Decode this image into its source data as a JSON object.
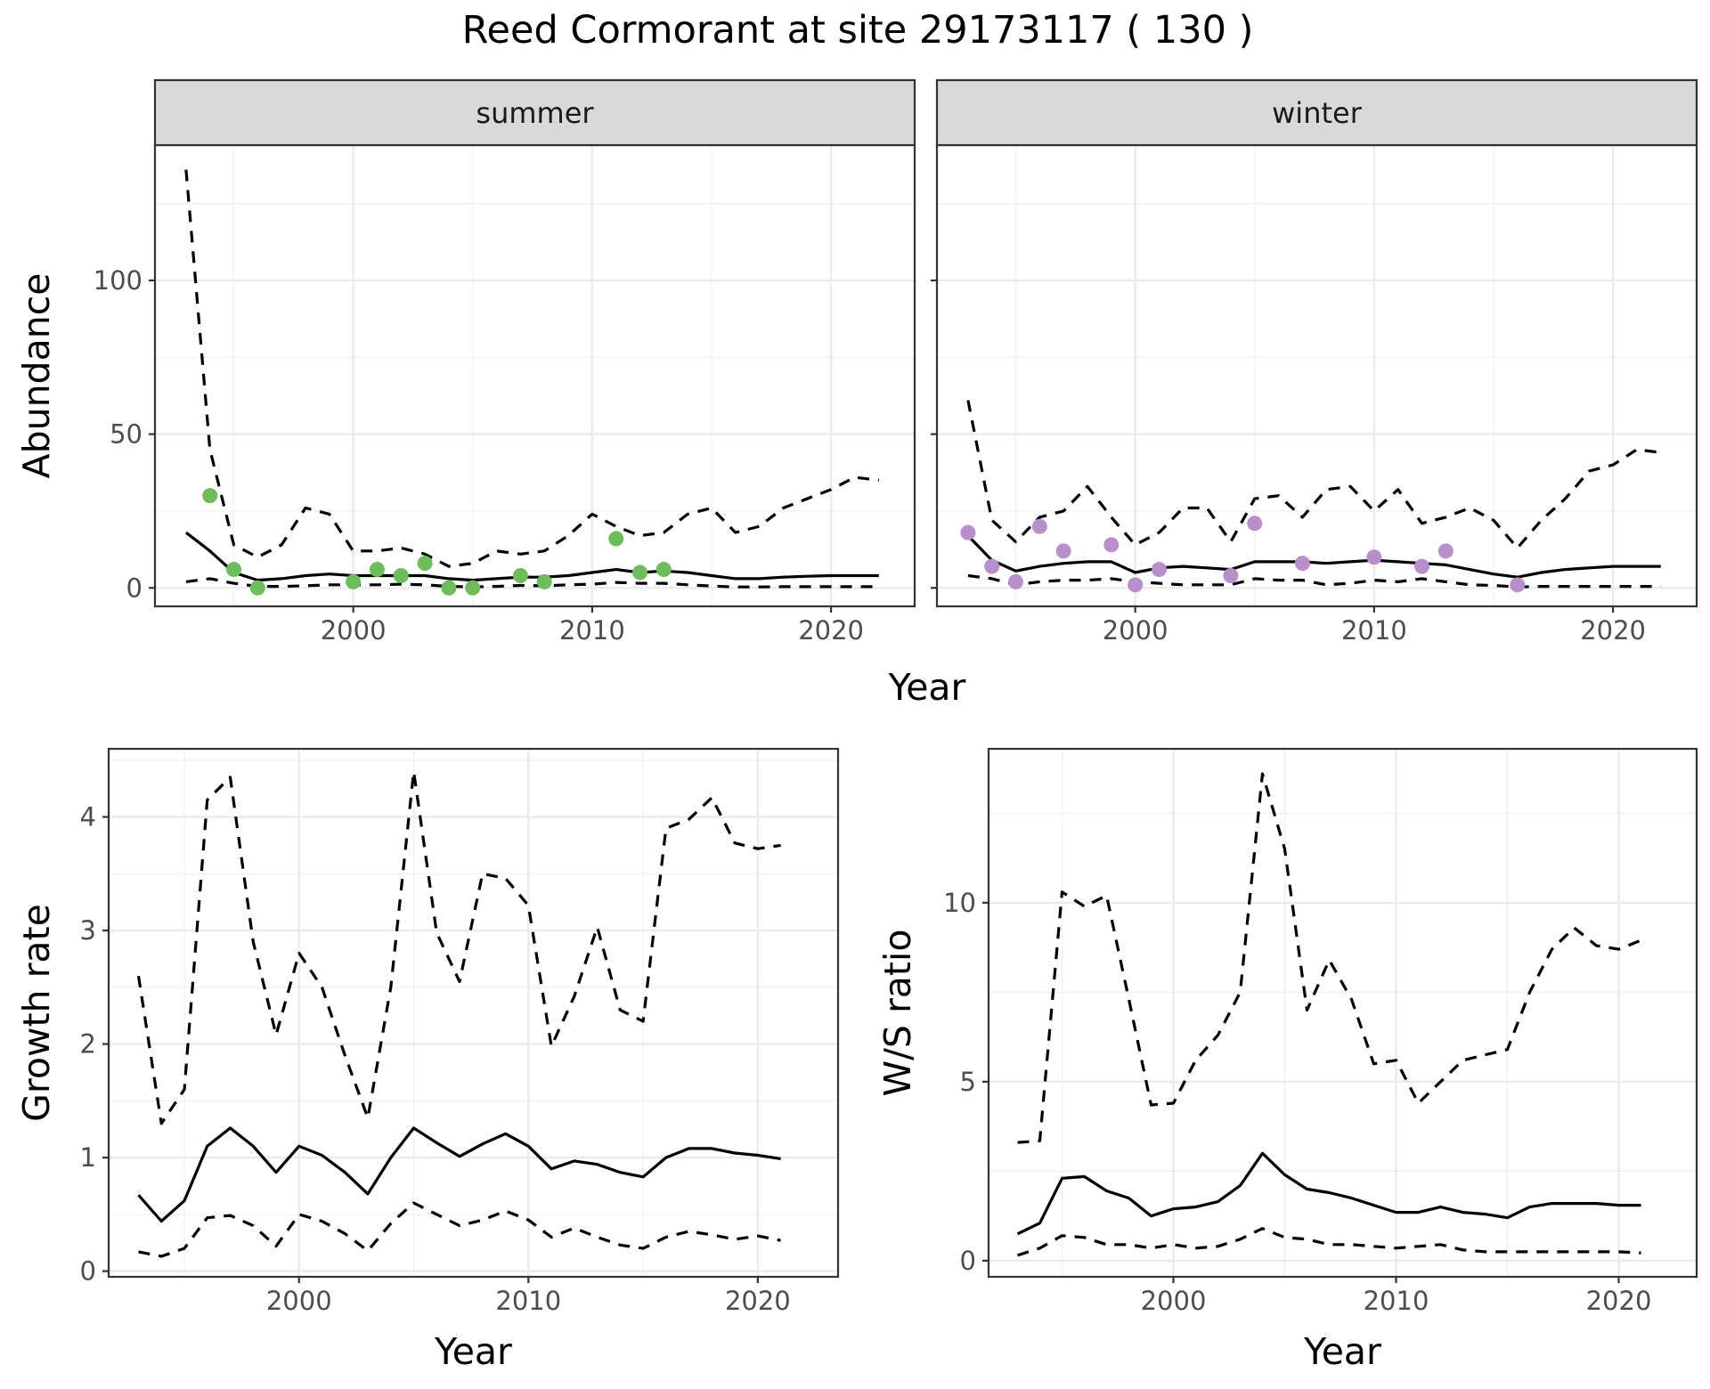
{
  "title": "Reed Cormorant at site 29173117 ( 130 )",
  "chart_data": [
    {
      "type": "line",
      "panel": "summer",
      "strip_label": "summer",
      "xlabel": "Year",
      "ylabel": "Abundance",
      "xlim": [
        1991.7,
        2023.5
      ],
      "ylim": [
        -6,
        144
      ],
      "xticks": [
        2000,
        2010,
        2020
      ],
      "yticks": [
        0,
        50,
        100
      ],
      "point_color": "#6dbd5c",
      "series": [
        {
          "role": "estimate",
          "style": "solid",
          "x": [
            1993,
            1994,
            1995,
            1996,
            1997,
            1998,
            1999,
            2000,
            2001,
            2002,
            2003,
            2004,
            2005,
            2006,
            2007,
            2008,
            2009,
            2010,
            2011,
            2012,
            2013,
            2014,
            2015,
            2016,
            2017,
            2018,
            2019,
            2020,
            2021,
            2022
          ],
          "y": [
            18,
            12,
            5,
            2.5,
            3,
            4,
            4.5,
            4,
            4,
            4,
            4,
            3,
            2.5,
            3,
            3.5,
            3.5,
            4,
            5,
            6,
            5,
            5.5,
            5,
            4,
            3,
            3,
            3.5,
            3.8,
            4,
            4,
            4
          ]
        },
        {
          "role": "upper",
          "style": "dashed",
          "x": [
            1993,
            1994,
            1995,
            1996,
            1997,
            1998,
            1999,
            2000,
            2001,
            2002,
            2003,
            2004,
            2005,
            2006,
            2007,
            2008,
            2009,
            2010,
            2011,
            2012,
            2013,
            2014,
            2015,
            2016,
            2017,
            2018,
            2019,
            2020,
            2021,
            2022
          ],
          "y": [
            136,
            45,
            14,
            10,
            14,
            26,
            24,
            12,
            12,
            13,
            11,
            7,
            8,
            12,
            11,
            12,
            17,
            24,
            20,
            17,
            18,
            24,
            26,
            18,
            20,
            26,
            29,
            32,
            36,
            35
          ]
        },
        {
          "role": "lower",
          "style": "dashed",
          "x": [
            1993,
            1994,
            1995,
            1996,
            1997,
            1998,
            1999,
            2000,
            2001,
            2002,
            2003,
            2004,
            2005,
            2006,
            2007,
            2008,
            2009,
            2010,
            2011,
            2012,
            2013,
            2014,
            2015,
            2016,
            2017,
            2018,
            2019,
            2020,
            2021,
            2022
          ],
          "y": [
            2,
            3,
            1.5,
            0.5,
            0.5,
            0.7,
            1,
            1,
            1,
            1.2,
            1,
            0.5,
            0.3,
            0.5,
            0.8,
            0.7,
            1,
            1.2,
            1.8,
            1.5,
            1.5,
            1,
            0.6,
            0.3,
            0.3,
            0.4,
            0.4,
            0.4,
            0.4,
            0.4
          ]
        },
        {
          "role": "observed",
          "style": "points",
          "x": [
            1994,
            1995,
            1996,
            2000,
            2001,
            2002,
            2003,
            2004,
            2005,
            2007,
            2008,
            2011,
            2012,
            2013
          ],
          "y": [
            30,
            6,
            0,
            2,
            6,
            4,
            8,
            0,
            0,
            4,
            2,
            16,
            5,
            6
          ]
        }
      ]
    },
    {
      "type": "line",
      "panel": "winter",
      "strip_label": "winter",
      "xlabel": "Year",
      "ylabel": "Abundance",
      "xlim": [
        1991.7,
        2023.5
      ],
      "ylim": [
        -6,
        144
      ],
      "xticks": [
        2000,
        2010,
        2020
      ],
      "yticks": [
        0,
        50,
        100
      ],
      "point_color": "#b88fcb",
      "series": [
        {
          "role": "estimate",
          "style": "solid",
          "x": [
            1993,
            1994,
            1995,
            1996,
            1997,
            1998,
            1999,
            2000,
            2001,
            2002,
            2003,
            2004,
            2005,
            2006,
            2007,
            2008,
            2009,
            2010,
            2011,
            2012,
            2013,
            2014,
            2015,
            2016,
            2017,
            2018,
            2019,
            2020,
            2021,
            2022
          ],
          "y": [
            17,
            9,
            5.5,
            7,
            8,
            8.5,
            8.5,
            5,
            6.5,
            7,
            6.5,
            6,
            8.5,
            8.5,
            8.5,
            8,
            8.5,
            9,
            8.5,
            8,
            7.5,
            6,
            4.5,
            3.5,
            5,
            6,
            6.5,
            7,
            7,
            7
          ]
        },
        {
          "role": "upper",
          "style": "dashed",
          "x": [
            1993,
            1994,
            1995,
            1996,
            1997,
            1998,
            1999,
            2000,
            2001,
            2002,
            2003,
            2004,
            2005,
            2006,
            2007,
            2008,
            2009,
            2010,
            2011,
            2012,
            2013,
            2014,
            2015,
            2016,
            2017,
            2018,
            2019,
            2020,
            2021,
            2022
          ],
          "y": [
            61,
            22,
            15,
            23,
            25,
            33,
            23,
            14,
            18,
            26,
            26,
            15,
            29,
            30,
            23,
            32,
            33,
            25,
            32,
            21,
            23,
            26,
            22,
            13,
            22,
            29,
            38,
            40,
            45,
            44
          ]
        },
        {
          "role": "lower",
          "style": "dashed",
          "x": [
            1993,
            1994,
            1995,
            1996,
            1997,
            1998,
            1999,
            2000,
            2001,
            2002,
            2003,
            2004,
            2005,
            2006,
            2007,
            2008,
            2009,
            2010,
            2011,
            2012,
            2013,
            2014,
            2015,
            2016,
            2017,
            2018,
            2019,
            2020,
            2021,
            2022
          ],
          "y": [
            4,
            3,
            1,
            2,
            2.5,
            2.5,
            3,
            2,
            1.5,
            1,
            1,
            1,
            3,
            2.5,
            2.5,
            1,
            1.5,
            2.5,
            2,
            3,
            2,
            1,
            0.8,
            0.3,
            0.5,
            0.5,
            0.5,
            0.5,
            0.5,
            0.5
          ]
        },
        {
          "role": "observed",
          "style": "points",
          "x": [
            1993,
            1994,
            1995,
            1996,
            1997,
            1999,
            2000,
            2001,
            2004,
            2005,
            2007,
            2010,
            2012,
            2013,
            2016
          ],
          "y": [
            18,
            7,
            2,
            20,
            12,
            14,
            1,
            6,
            4,
            21,
            8,
            10,
            7,
            12,
            1
          ]
        }
      ]
    },
    {
      "type": "line",
      "panel": "growth",
      "xlabel": "Year",
      "ylabel": "Growth rate",
      "xlim": [
        1991.7,
        2023.5
      ],
      "ylim": [
        -0.05,
        4.6
      ],
      "xticks": [
        2000,
        2010,
        2020
      ],
      "yticks": [
        0,
        1,
        2,
        3,
        4
      ],
      "series": [
        {
          "role": "estimate",
          "style": "solid",
          "x": [
            1993,
            1994,
            1995,
            1996,
            1997,
            1998,
            1999,
            2000,
            2001,
            2002,
            2003,
            2004,
            2005,
            2006,
            2007,
            2008,
            2009,
            2010,
            2011,
            2012,
            2013,
            2014,
            2015,
            2016,
            2017,
            2018,
            2019,
            2020,
            2021
          ],
          "y": [
            0.67,
            0.44,
            0.62,
            1.1,
            1.26,
            1.1,
            0.87,
            1.1,
            1.02,
            0.87,
            0.68,
            1.0,
            1.26,
            1.13,
            1.01,
            1.12,
            1.21,
            1.1,
            0.9,
            0.97,
            0.94,
            0.87,
            0.83,
            1.0,
            1.08,
            1.08,
            1.04,
            1.02,
            0.99
          ]
        },
        {
          "role": "upper",
          "style": "dashed",
          "x": [
            1993,
            1994,
            1995,
            1996,
            1997,
            1998,
            1999,
            2000,
            2001,
            2002,
            2003,
            2004,
            2005,
            2006,
            2007,
            2008,
            2009,
            2010,
            2011,
            2012,
            2013,
            2014,
            2015,
            2016,
            2017,
            2018,
            2019,
            2020,
            2021
          ],
          "y": [
            2.6,
            1.3,
            1.6,
            4.15,
            4.35,
            2.9,
            2.08,
            2.8,
            2.5,
            1.9,
            1.35,
            2.5,
            4.4,
            2.98,
            2.55,
            3.5,
            3.46,
            3.22,
            1.98,
            2.42,
            3.03,
            2.3,
            2.2,
            3.9,
            3.98,
            4.17,
            3.77,
            3.72,
            3.75
          ]
        },
        {
          "role": "lower",
          "style": "dashed",
          "x": [
            1993,
            1994,
            1995,
            1996,
            1997,
            1998,
            1999,
            2000,
            2001,
            2002,
            2003,
            2004,
            2005,
            2006,
            2007,
            2008,
            2009,
            2010,
            2011,
            2012,
            2013,
            2014,
            2015,
            2016,
            2017,
            2018,
            2019,
            2020,
            2021
          ],
          "y": [
            0.17,
            0.13,
            0.2,
            0.47,
            0.49,
            0.4,
            0.22,
            0.5,
            0.44,
            0.33,
            0.18,
            0.42,
            0.6,
            0.5,
            0.4,
            0.45,
            0.53,
            0.45,
            0.3,
            0.38,
            0.3,
            0.23,
            0.2,
            0.3,
            0.35,
            0.32,
            0.28,
            0.31,
            0.27
          ]
        }
      ]
    },
    {
      "type": "line",
      "panel": "ws_ratio",
      "xlabel": "Year",
      "ylabel": "W/S ratio",
      "xlim": [
        1991.7,
        2023.5
      ],
      "ylim": [
        -0.45,
        14.3
      ],
      "xticks": [
        2000,
        2010,
        2020
      ],
      "yticks": [
        0,
        5,
        10
      ],
      "series": [
        {
          "role": "estimate",
          "style": "solid",
          "x": [
            1993,
            1994,
            1995,
            1996,
            1997,
            1998,
            1999,
            2000,
            2001,
            2002,
            2003,
            2004,
            2005,
            2006,
            2007,
            2008,
            2009,
            2010,
            2011,
            2012,
            2013,
            2014,
            2015,
            2016,
            2017,
            2018,
            2019,
            2020,
            2021
          ],
          "y": [
            0.75,
            1.05,
            2.3,
            2.35,
            1.95,
            1.75,
            1.25,
            1.45,
            1.5,
            1.65,
            2.1,
            3.0,
            2.4,
            2.0,
            1.9,
            1.75,
            1.55,
            1.35,
            1.35,
            1.5,
            1.35,
            1.3,
            1.2,
            1.5,
            1.6,
            1.6,
            1.6,
            1.55,
            1.55
          ]
        },
        {
          "role": "upper",
          "style": "dashed",
          "x": [
            1993,
            1994,
            1995,
            1996,
            1997,
            1998,
            1999,
            2000,
            2001,
            2002,
            2003,
            2004,
            2005,
            2006,
            2007,
            2008,
            2009,
            2010,
            2011,
            2012,
            2013,
            2014,
            2015,
            2016,
            2017,
            2018,
            2019,
            2020,
            2021
          ],
          "y": [
            3.3,
            3.35,
            10.3,
            9.9,
            10.2,
            7.3,
            4.35,
            4.4,
            5.6,
            6.3,
            7.5,
            13.6,
            11.5,
            7.0,
            8.4,
            7.3,
            5.5,
            5.6,
            4.4,
            5.0,
            5.6,
            5.75,
            5.9,
            7.5,
            8.7,
            9.3,
            8.8,
            8.7,
            8.95
          ]
        },
        {
          "role": "lower",
          "style": "dashed",
          "x": [
            1993,
            1994,
            1995,
            1996,
            1997,
            1998,
            1999,
            2000,
            2001,
            2002,
            2003,
            2004,
            2005,
            2006,
            2007,
            2008,
            2009,
            2010,
            2011,
            2012,
            2013,
            2014,
            2015,
            2016,
            2017,
            2018,
            2019,
            2020,
            2021
          ],
          "y": [
            0.15,
            0.35,
            0.7,
            0.65,
            0.45,
            0.45,
            0.35,
            0.45,
            0.35,
            0.4,
            0.6,
            0.9,
            0.65,
            0.6,
            0.45,
            0.45,
            0.4,
            0.35,
            0.4,
            0.45,
            0.3,
            0.25,
            0.25,
            0.25,
            0.25,
            0.25,
            0.25,
            0.25,
            0.22
          ]
        }
      ]
    }
  ]
}
